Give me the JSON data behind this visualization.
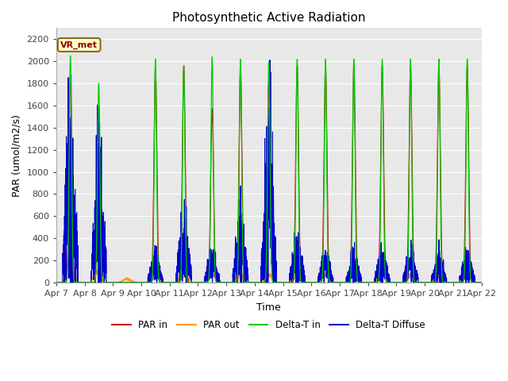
{
  "title": "Photosynthetic Active Radiation",
  "xlabel": "Time",
  "ylabel": "PAR (umol/m2/s)",
  "ylim": [
    0,
    2300
  ],
  "yticks": [
    0,
    200,
    400,
    600,
    800,
    1000,
    1200,
    1400,
    1600,
    1800,
    2000,
    2200
  ],
  "legend_labels": [
    "PAR in",
    "PAR out",
    "Delta-T in",
    "Delta-T Diffuse"
  ],
  "legend_colors": [
    "#cc0000",
    "#ff9900",
    "#00cc00",
    "#0000cc"
  ],
  "annotation_text": "VR_met",
  "plot_bg_color": "#e8e8e8",
  "fig_bg_color": "#ffffff",
  "n_days": 15,
  "start_day": 7,
  "points_per_day": 288,
  "par_in_peaks": [
    1880,
    860,
    0,
    1950,
    1960,
    1570,
    1960,
    1820,
    1960,
    1960,
    1960,
    1960,
    1960,
    1960,
    1960
  ],
  "par_out_peaks": [
    80,
    100,
    30,
    75,
    60,
    65,
    65,
    70,
    65,
    65,
    65,
    65,
    65,
    65,
    65
  ],
  "dtin_peaks": [
    2050,
    1800,
    0,
    2020,
    1960,
    2040,
    2020,
    2000,
    2020,
    2020,
    2020,
    2020,
    2020,
    2020,
    2020
  ],
  "dtdiff_peaks": [
    850,
    700,
    0,
    150,
    330,
    160,
    350,
    830,
    250,
    155,
    155,
    155,
    155,
    155,
    155
  ]
}
